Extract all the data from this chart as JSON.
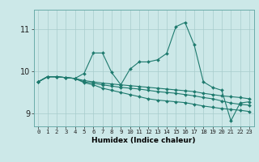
{
  "title": "",
  "xlabel": "Humidex (Indice chaleur)",
  "ylabel": "",
  "bg_color": "#cce8e8",
  "line_color": "#1e7a6e",
  "grid_color": "#a8cccc",
  "x": [
    0,
    1,
    2,
    3,
    4,
    5,
    6,
    7,
    8,
    9,
    10,
    11,
    12,
    13,
    14,
    15,
    16,
    17,
    18,
    19,
    20,
    21,
    22,
    23
  ],
  "series": [
    [
      9.75,
      9.87,
      9.87,
      9.85,
      9.83,
      9.95,
      10.43,
      10.43,
      9.97,
      9.68,
      10.05,
      10.22,
      10.22,
      10.27,
      10.42,
      11.05,
      11.15,
      10.62,
      9.75,
      9.62,
      9.55,
      8.83,
      9.25,
      9.28
    ],
    [
      9.75,
      9.87,
      9.87,
      9.85,
      9.83,
      9.78,
      9.75,
      9.72,
      9.7,
      9.68,
      9.66,
      9.64,
      9.62,
      9.6,
      9.58,
      9.56,
      9.54,
      9.52,
      9.48,
      9.45,
      9.42,
      9.4,
      9.38,
      9.35
    ],
    [
      9.75,
      9.87,
      9.87,
      9.85,
      9.83,
      9.75,
      9.72,
      9.68,
      9.65,
      9.62,
      9.6,
      9.58,
      9.55,
      9.52,
      9.5,
      9.48,
      9.45,
      9.42,
      9.38,
      9.35,
      9.3,
      9.25,
      9.22,
      9.2
    ],
    [
      9.75,
      9.87,
      9.87,
      9.85,
      9.83,
      9.73,
      9.68,
      9.6,
      9.55,
      9.5,
      9.45,
      9.4,
      9.35,
      9.32,
      9.3,
      9.28,
      9.26,
      9.22,
      9.18,
      9.15,
      9.12,
      9.1,
      9.08,
      9.05
    ]
  ],
  "ylim": [
    8.7,
    11.45
  ],
  "yticks": [
    9,
    10,
    11
  ],
  "xlim": [
    -0.5,
    23.5
  ],
  "xticks": [
    0,
    1,
    2,
    3,
    4,
    5,
    6,
    7,
    8,
    9,
    10,
    11,
    12,
    13,
    14,
    15,
    16,
    17,
    18,
    19,
    20,
    21,
    22,
    23
  ],
  "xlabel_fontsize": 6.5,
  "ytick_fontsize": 7.0,
  "xtick_fontsize": 5.2
}
